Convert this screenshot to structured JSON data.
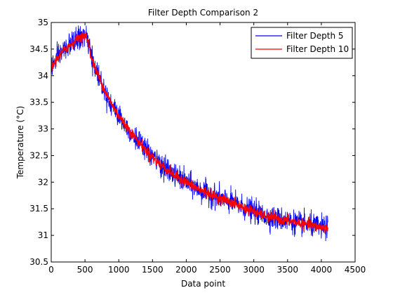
{
  "chart_data": {
    "type": "line",
    "title": "Filter Depth Comparison 2",
    "xlabel": "Data point",
    "ylabel": "Temperature (°C)",
    "xlim": [
      0,
      4500
    ],
    "ylim": [
      30.5,
      35
    ],
    "xticks": [
      0,
      500,
      1000,
      1500,
      2000,
      2500,
      3000,
      3500,
      4000,
      4500
    ],
    "yticks": [
      30.5,
      31,
      31.5,
      32,
      32.5,
      33,
      33.5,
      34,
      34.5,
      35
    ],
    "grid": false,
    "legend_position": "top-right",
    "series": [
      {
        "name": "Filter Depth 5",
        "color": "#0000ff",
        "trend_x": [
          0,
          100,
          200,
          300,
          400,
          500,
          550,
          600,
          700,
          800,
          900,
          1000,
          1200,
          1400,
          1600,
          1800,
          2000,
          2200,
          2400,
          2600,
          2800,
          3000,
          3200,
          3400,
          3600,
          3800,
          4000,
          4100
        ],
        "trend_y": [
          34.15,
          34.35,
          34.5,
          34.6,
          34.7,
          34.75,
          34.65,
          34.3,
          34.0,
          33.7,
          33.45,
          33.25,
          32.9,
          32.6,
          32.35,
          32.15,
          32.0,
          31.85,
          31.75,
          31.65,
          31.55,
          31.45,
          31.35,
          31.3,
          31.25,
          31.2,
          31.15,
          31.15
        ],
        "noise": 0.18
      },
      {
        "name": "Filter Depth 10",
        "color": "#ff0000",
        "trend_x": [
          0,
          100,
          200,
          300,
          400,
          500,
          550,
          600,
          700,
          800,
          900,
          1000,
          1200,
          1400,
          1600,
          1800,
          2000,
          2200,
          2400,
          2600,
          2800,
          3000,
          3200,
          3400,
          3600,
          3800,
          4000,
          4100
        ],
        "trend_y": [
          34.15,
          34.35,
          34.5,
          34.6,
          34.7,
          34.75,
          34.65,
          34.3,
          34.0,
          33.7,
          33.45,
          33.25,
          32.9,
          32.6,
          32.35,
          32.15,
          32.0,
          31.85,
          31.75,
          31.65,
          31.55,
          31.45,
          31.35,
          31.3,
          31.25,
          31.2,
          31.15,
          31.15
        ],
        "noise": 0.08
      }
    ]
  }
}
